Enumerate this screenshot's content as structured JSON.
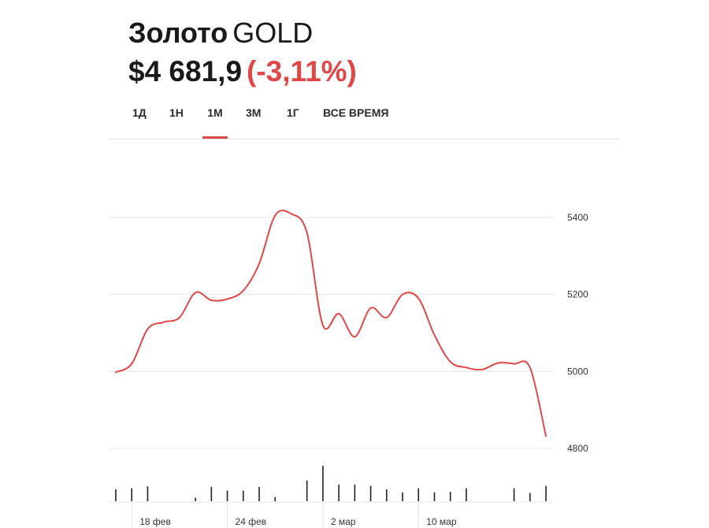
{
  "header": {
    "name": "Золото",
    "ticker": "GOLD",
    "price": "$4 681,9",
    "change": "(-3,11%)"
  },
  "tabs": [
    {
      "label": "1Д",
      "active": false
    },
    {
      "label": "1Н",
      "active": false
    },
    {
      "label": "1М",
      "active": true
    },
    {
      "label": "3М",
      "active": false
    },
    {
      "label": "1Г",
      "active": false
    },
    {
      "label": "ВСЕ ВРЕМЯ",
      "active": false
    }
  ],
  "colors": {
    "accent": "#e04848",
    "line": "#e04848",
    "grid": "#e8e8e8",
    "volume": "#222222"
  },
  "chart_data": {
    "type": "line",
    "x": [
      0,
      1,
      2,
      3,
      4,
      5,
      6,
      7,
      8,
      9,
      10,
      11,
      12,
      13,
      14,
      15,
      16,
      17,
      18,
      19,
      20,
      21,
      22,
      23,
      24,
      25,
      26,
      27
    ],
    "values": [
      4998,
      5020,
      5110,
      5128,
      5140,
      5205,
      5185,
      5188,
      5210,
      5280,
      5405,
      5410,
      5360,
      5120,
      5150,
      5090,
      5165,
      5140,
      5200,
      5190,
      5095,
      5025,
      5010,
      5005,
      5022,
      5020,
      5010,
      4832
    ],
    "volume": [
      0.2,
      0.22,
      0.25,
      0,
      0,
      0.06,
      0.24,
      0.18,
      0.18,
      0.24,
      0.07,
      0,
      0.35,
      0.6,
      0.28,
      0.28,
      0.26,
      0.2,
      0.15,
      0.22,
      0.15,
      0.16,
      0.22,
      0,
      0,
      0.22,
      0.14,
      0.26
    ],
    "x_tick_labels": [
      {
        "index": 1,
        "label": "18 фев"
      },
      {
        "index": 7,
        "label": "24 фев"
      },
      {
        "index": 13,
        "label": "2 мар"
      },
      {
        "index": 19,
        "label": "10 мар"
      }
    ],
    "y_ticks": [
      4800,
      5000,
      5200,
      5400
    ],
    "y_tick_labels": [
      "4800",
      "5000",
      "5200",
      "5400"
    ],
    "ylim": [
      4800,
      5400
    ],
    "grid": true
  }
}
